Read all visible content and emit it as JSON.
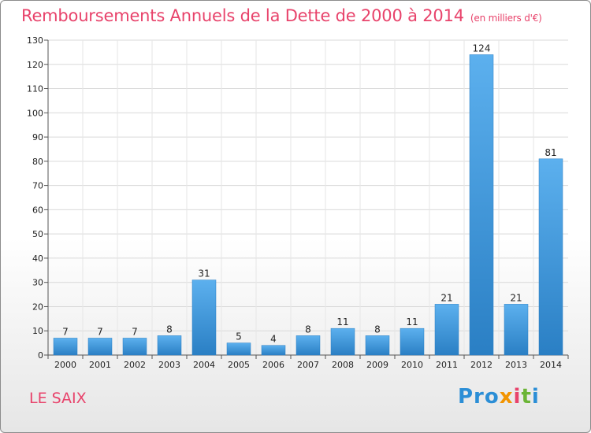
{
  "chart_data": {
    "type": "bar",
    "title": "Remboursements Annuels de la Dette de 2000 à 2014",
    "unit": "(en milliers d'€)",
    "categories": [
      "2000",
      "2001",
      "2002",
      "2003",
      "2004",
      "2005",
      "2006",
      "2007",
      "2008",
      "2009",
      "2010",
      "2011",
      "2012",
      "2013",
      "2014"
    ],
    "values": [
      7,
      7,
      7,
      8,
      31,
      5,
      4,
      8,
      11,
      8,
      11,
      21,
      124,
      21,
      81
    ],
    "ylim": [
      0,
      130
    ],
    "yticks": [
      0,
      10,
      20,
      30,
      40,
      50,
      60,
      70,
      80,
      90,
      100,
      110,
      120,
      130
    ],
    "grid": true,
    "bar_color": "#3a96dc"
  },
  "footer": {
    "commune": "LE SAIX",
    "logo": {
      "p1": "Pro",
      "p2": "x",
      "p3": "i",
      "p4": "t",
      "p5": "i"
    }
  }
}
